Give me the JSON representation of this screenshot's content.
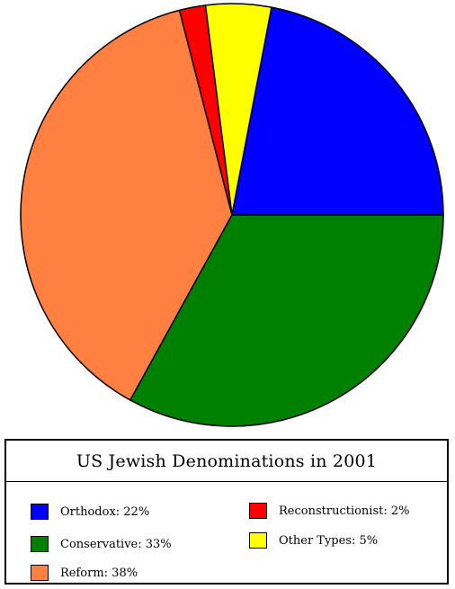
{
  "chart_data": {
    "type": "pie",
    "title": "US Jewish Denominations in 2001",
    "categories": [
      "Orthodox",
      "Conservative",
      "Reform",
      "Reconstructionist",
      "Other Types"
    ],
    "values": [
      22,
      33,
      38,
      2,
      5
    ],
    "unit": "%",
    "legend_labels": [
      "Orthodox: 22%",
      "Conservative: 33%",
      "Reform: 38%",
      "Reconstructionist: 2%",
      "Other Types: 5%"
    ],
    "colors": [
      "#0000ff",
      "#008000",
      "#ff8040",
      "#ff0000",
      "#ffff00"
    ],
    "legend_position": "bottom"
  }
}
